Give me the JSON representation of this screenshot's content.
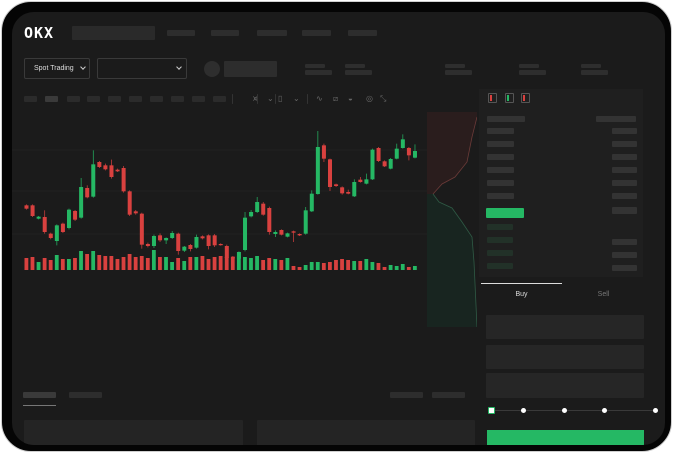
{
  "header": {
    "logo": "OKX"
  },
  "market": {
    "mode_select": "Spot Trading"
  },
  "trade": {
    "tabs": [
      {
        "label": "Buy",
        "active": true
      },
      {
        "label": "Sell",
        "active": false
      }
    ],
    "slider_percent": 0
  },
  "colors": {
    "up": "#25b864",
    "down": "#d9413f",
    "background": "#1b1b1b",
    "placeholder": "#2d2d2d"
  },
  "toolbar_icons": [
    "indicator-icon",
    "indicator-settings-icon",
    "chart-type-icon",
    "chart-type-chevron-icon",
    "line-tool-icon",
    "ruler-icon",
    "screenshot-icon",
    "settings-icon",
    "fullscreen-icon"
  ],
  "chart_data": {
    "type": "candlestick",
    "candles": [
      [
        200,
        190,
        203,
        187
      ],
      [
        200,
        168,
        203,
        165
      ],
      [
        160,
        166,
        168,
        158
      ],
      [
        165,
        120,
        185,
        115
      ],
      [
        115,
        102,
        118,
        98
      ],
      [
        93,
        140,
        143,
        80
      ],
      [
        145,
        120,
        148,
        117
      ],
      [
        132,
        187,
        190,
        128
      ],
      [
        183,
        157,
        186,
        153
      ],
      [
        163,
        255,
        282,
        160
      ],
      [
        252,
        224,
        260,
        221
      ],
      [
        226,
        323,
        365,
        223
      ],
      [
        330,
        315,
        333,
        312
      ],
      [
        320,
        308,
        325,
        305
      ],
      [
        320,
        285,
        337,
        280
      ],
      [
        307,
        302,
        310,
        300
      ],
      [
        312,
        242,
        318,
        238
      ],
      [
        242,
        172,
        245,
        168
      ],
      [
        182,
        176,
        186,
        172
      ],
      [
        175,
        82,
        178,
        70
      ],
      [
        84,
        78,
        88,
        74
      ],
      [
        78,
        108,
        112,
        72
      ],
      [
        110,
        95,
        116,
        90
      ],
      [
        95,
        102,
        104,
        84
      ],
      [
        102,
        117,
        123,
        99
      ],
      [
        115,
        63,
        118,
        52
      ],
      [
        64,
        76,
        78,
        60
      ],
      [
        81,
        69,
        84,
        62
      ],
      [
        73,
        105,
        112,
        70
      ],
      [
        107,
        101,
        110,
        98
      ],
      [
        110,
        78,
        113,
        68
      ],
      [
        110,
        80,
        114,
        75
      ],
      [
        84,
        81,
        86,
        79
      ],
      [
        78,
        42,
        82,
        40
      ],
      [
        46,
        41,
        48,
        40
      ],
      [
        40,
        60,
        62,
        37
      ],
      [
        66,
        163,
        180,
        62
      ],
      [
        167,
        180,
        186,
        164
      ],
      [
        180,
        210,
        225,
        177
      ],
      [
        205,
        172,
        210,
        169
      ],
      [
        192,
        120,
        196,
        112
      ],
      [
        114,
        120,
        125,
        105
      ],
      [
        126,
        112,
        128,
        110
      ],
      [
        106,
        116,
        118,
        104
      ],
      [
        122,
        118,
        124,
        90
      ],
      [
        114,
        110,
        116,
        108
      ],
      [
        115,
        185,
        195,
        112
      ],
      [
        182,
        235,
        245,
        180
      ],
      [
        234,
        375,
        423,
        232
      ],
      [
        380,
        340,
        385,
        330
      ],
      [
        338,
        255,
        340,
        243
      ],
      [
        263,
        258,
        265,
        255
      ],
      [
        254,
        236,
        257,
        232
      ],
      [
        240,
        235,
        247,
        233
      ],
      [
        227,
        270,
        278,
        225
      ],
      [
        277,
        270,
        285,
        268
      ],
      [
        265,
        278,
        295,
        263
      ],
      [
        278,
        367,
        370,
        276
      ],
      [
        372,
        333,
        375,
        330
      ],
      [
        332,
        317,
        335,
        315
      ],
      [
        310,
        339,
        342,
        308
      ],
      [
        340,
        370,
        385,
        338
      ],
      [
        372,
        398,
        413,
        370
      ],
      [
        372,
        350,
        375,
        335
      ],
      [
        343,
        363,
        383,
        341
      ]
    ],
    "volume": [
      12,
      13,
      8,
      12,
      10,
      15,
      11,
      11,
      12,
      19,
      16,
      19,
      15,
      14,
      14,
      11,
      13,
      16,
      13,
      14,
      12,
      20,
      13,
      13,
      8,
      12,
      9,
      13,
      13,
      14,
      11,
      13,
      14,
      13,
      12,
      14,
      13,
      12,
      14,
      10,
      12,
      11,
      10,
      12,
      4,
      3,
      5,
      8,
      8,
      7,
      8,
      10,
      11,
      10,
      9,
      9,
      11,
      8,
      7,
      3,
      5,
      4,
      6,
      3,
      4
    ]
  }
}
